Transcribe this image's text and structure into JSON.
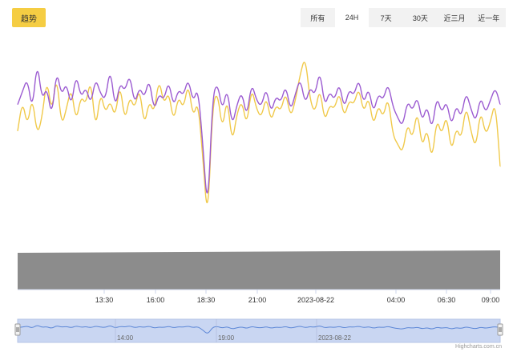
{
  "trend_button": {
    "label": "趋势"
  },
  "range_selector": {
    "buttons": [
      "所有",
      "24H",
      "7天",
      "30天",
      "近三月",
      "近一年"
    ],
    "active_index": 1
  },
  "credit": "Highcharts.com.cn",
  "colors": {
    "purple": "#9b5bd1",
    "yellow": "#f0c94a",
    "volume": "#8c8c8c",
    "navigator_fill": "#c9d6f2",
    "navigator_line": "#5b86d6"
  },
  "chart_data": {
    "type": "line",
    "x_tick_labels": [
      "13:30",
      "16:00",
      "18:30",
      "21:00",
      "2023-08-22",
      "04:00",
      "06:30",
      "09:00"
    ],
    "navigator_tick_labels": [
      "14:00",
      "19:00",
      "2023-08-22"
    ],
    "grid": false,
    "legend": "none",
    "series": [
      {
        "values": [
          58,
          64,
          70,
          55,
          78,
          60,
          66,
          52,
          74,
          62,
          68,
          57,
          72,
          61,
          66,
          58,
          70,
          63,
          60,
          75,
          56,
          68,
          64,
          72,
          58,
          66,
          61,
          70,
          55,
          63,
          60,
          69,
          57,
          65,
          62,
          70,
          59,
          66,
          40,
          8,
          62,
          68,
          55,
          66,
          48,
          58,
          64,
          52,
          68,
          60,
          57,
          66,
          54,
          62,
          59,
          67,
          55,
          63,
          70,
          58,
          66,
          62,
          74,
          57,
          64,
          60,
          68,
          56,
          65,
          62,
          70,
          58,
          66,
          54,
          63,
          60,
          68,
          57,
          52,
          48,
          60,
          55,
          62,
          50,
          58,
          46,
          62,
          54,
          60,
          48,
          58,
          52,
          64,
          56,
          50,
          62,
          54,
          60,
          66,
          58
        ]
      },
      {
        "values": [
          46,
          60,
          48,
          62,
          44,
          52,
          70,
          54,
          72,
          48,
          56,
          66,
          50,
          62,
          58,
          70,
          46,
          64,
          54,
          60,
          52,
          68,
          50,
          62,
          56,
          66,
          48,
          60,
          54,
          70,
          58,
          64,
          50,
          62,
          56,
          68,
          52,
          60,
          34,
          4,
          58,
          64,
          46,
          62,
          40,
          54,
          60,
          48,
          66,
          56,
          52,
          62,
          50,
          58,
          55,
          64,
          52,
          60,
          72,
          80,
          60,
          54,
          66,
          50,
          58,
          56,
          64,
          52,
          60,
          58,
          66,
          54,
          62,
          48,
          58,
          52,
          62,
          44,
          40,
          36,
          50,
          42,
          56,
          38,
          48,
          32,
          52,
          44,
          54,
          36,
          48,
          42,
          58,
          46,
          38,
          56,
          44,
          50,
          60,
          30
        ]
      }
    ]
  }
}
